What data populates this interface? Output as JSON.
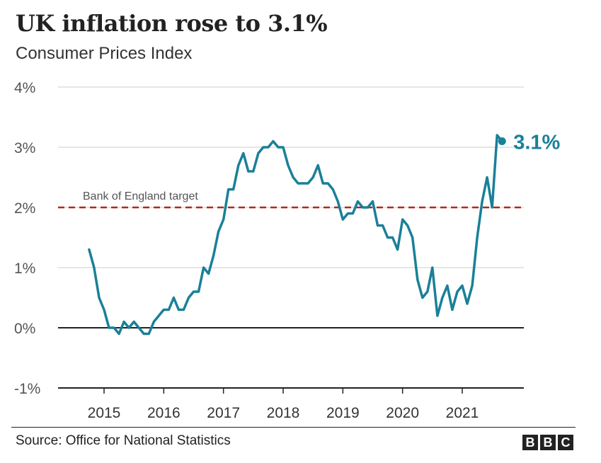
{
  "chart_data": {
    "type": "line",
    "title": "UK inflation rose to 3.1%",
    "subtitle": "Consumer Prices Index",
    "ylim": [
      -1,
      4
    ],
    "yticks": [
      -1,
      0,
      1,
      2,
      3,
      4
    ],
    "ytick_labels": [
      "-1%",
      "0%",
      "1%",
      "2%",
      "3%",
      "4%"
    ],
    "xticks": [
      2015,
      2016,
      2017,
      2018,
      2019,
      2020,
      2021
    ],
    "xtick_labels": [
      "2015",
      "2016",
      "2017",
      "2018",
      "2019",
      "2020",
      "2021"
    ],
    "grid": true,
    "reference_line": {
      "label": "Bank of England target",
      "value": 2,
      "color": "#b5271f"
    },
    "series": [
      {
        "color": "#1a8098",
        "x": [
          "2014-10",
          "2014-11",
          "2014-12",
          "2015-01",
          "2015-02",
          "2015-03",
          "2015-04",
          "2015-05",
          "2015-06",
          "2015-07",
          "2015-08",
          "2015-09",
          "2015-10",
          "2015-11",
          "2015-12",
          "2016-01",
          "2016-02",
          "2016-03",
          "2016-04",
          "2016-05",
          "2016-06",
          "2016-07",
          "2016-08",
          "2016-09",
          "2016-10",
          "2016-11",
          "2016-12",
          "2017-01",
          "2017-02",
          "2017-03",
          "2017-04",
          "2017-05",
          "2017-06",
          "2017-07",
          "2017-08",
          "2017-09",
          "2017-10",
          "2017-11",
          "2017-12",
          "2018-01",
          "2018-02",
          "2018-03",
          "2018-04",
          "2018-05",
          "2018-06",
          "2018-07",
          "2018-08",
          "2018-09",
          "2018-10",
          "2018-11",
          "2018-12",
          "2019-01",
          "2019-02",
          "2019-03",
          "2019-04",
          "2019-05",
          "2019-06",
          "2019-07",
          "2019-08",
          "2019-09",
          "2019-10",
          "2019-11",
          "2019-12",
          "2020-01",
          "2020-02",
          "2020-03",
          "2020-04",
          "2020-05",
          "2020-06",
          "2020-07",
          "2020-08",
          "2020-09",
          "2020-10",
          "2020-11",
          "2020-12",
          "2021-01",
          "2021-02",
          "2021-03",
          "2021-04",
          "2021-05",
          "2021-06",
          "2021-07",
          "2021-08",
          "2021-09"
        ],
        "values": [
          1.3,
          1.0,
          0.5,
          0.3,
          0.0,
          0.0,
          -0.1,
          0.1,
          0.0,
          0.1,
          0.0,
          -0.1,
          -0.1,
          0.1,
          0.2,
          0.3,
          0.3,
          0.5,
          0.3,
          0.3,
          0.5,
          0.6,
          0.6,
          1.0,
          0.9,
          1.2,
          1.6,
          1.8,
          2.3,
          2.3,
          2.7,
          2.9,
          2.6,
          2.6,
          2.9,
          3.0,
          3.0,
          3.1,
          3.0,
          3.0,
          2.7,
          2.5,
          2.4,
          2.4,
          2.4,
          2.5,
          2.7,
          2.4,
          2.4,
          2.3,
          2.1,
          1.8,
          1.9,
          1.9,
          2.1,
          2.0,
          2.0,
          2.1,
          1.7,
          1.7,
          1.5,
          1.5,
          1.3,
          1.8,
          1.7,
          1.5,
          0.8,
          0.5,
          0.6,
          1.0,
          0.2,
          0.5,
          0.7,
          0.3,
          0.6,
          0.7,
          0.4,
          0.7,
          1.5,
          2.1,
          2.5,
          2.0,
          3.2,
          3.1
        ],
        "end_label": "3.1%"
      }
    ]
  },
  "footer": {
    "source": "Source: Office for National Statistics",
    "logo": [
      "B",
      "B",
      "C"
    ]
  }
}
